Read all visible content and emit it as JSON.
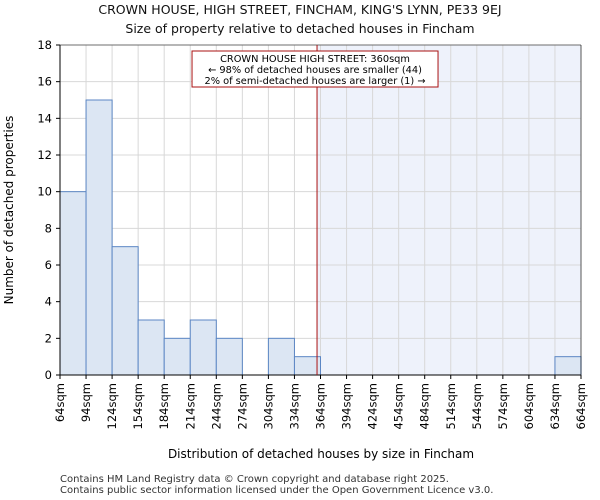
{
  "chart_data": {
    "type": "bar",
    "title": "CROWN HOUSE, HIGH STREET, FINCHAM, KING'S LYNN, PE33 9EJ",
    "subtitle": "Size of property relative to detached houses in Fincham",
    "xlabel": "Distribution of detached houses by size in Fincham",
    "ylabel": "Number of detached properties",
    "ylim": [
      0,
      18
    ],
    "yticks": [
      0,
      2,
      4,
      6,
      8,
      10,
      12,
      14,
      16,
      18
    ],
    "bin_edges": [
      64,
      94,
      124,
      154,
      184,
      214,
      244,
      274,
      304,
      334,
      364,
      394,
      424,
      454,
      484,
      514,
      544,
      574,
      604,
      634,
      664
    ],
    "tick_labels": [
      "64sqm",
      "94sqm",
      "124sqm",
      "154sqm",
      "184sqm",
      "214sqm",
      "244sqm",
      "274sqm",
      "304sqm",
      "334sqm",
      "364sqm",
      "394sqm",
      "424sqm",
      "454sqm",
      "484sqm",
      "514sqm",
      "544sqm",
      "574sqm",
      "604sqm",
      "634sqm",
      "664sqm"
    ],
    "values": [
      10,
      15,
      7,
      3,
      2,
      3,
      2,
      0,
      2,
      1,
      0,
      0,
      0,
      0,
      0,
      0,
      0,
      0,
      0,
      1
    ],
    "marker_value": 360,
    "annotation": {
      "lines": [
        "CROWN HOUSE HIGH STREET: 360sqm",
        "← 98% of detached houses are smaller (44)",
        "2% of semi-detached houses are larger (1) →"
      ]
    },
    "colors": {
      "bar_fill": "#dce6f3",
      "bar_stroke": "#5b86c4",
      "marker": "#aa1111",
      "shade": "#eef2fb",
      "grid": "#d8d8d8"
    },
    "grid": true
  },
  "footer": {
    "line1": "Contains HM Land Registry data © Crown copyright and database right 2025.",
    "line2": "Contains public sector information licensed under the Open Government Licence v3.0."
  }
}
